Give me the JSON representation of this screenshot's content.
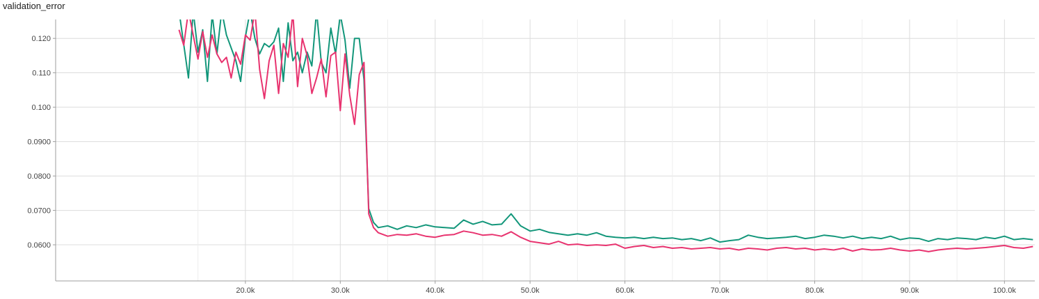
{
  "chart_data": {
    "type": "line",
    "title": "validation_error",
    "xlabel": "",
    "ylabel": "",
    "xlim": [
      0,
      103200
    ],
    "ylim": [
      0.0495,
      0.1255
    ],
    "grid": true,
    "x_ticks": [
      20000,
      30000,
      40000,
      50000,
      60000,
      70000,
      80000,
      90000,
      100000
    ],
    "x_tick_labels": [
      "20.0k",
      "30.0k",
      "40.0k",
      "50.0k",
      "60.0k",
      "70.0k",
      "80.0k",
      "90.0k",
      "100.0k"
    ],
    "y_ticks": [
      0.06,
      0.07,
      0.08,
      0.09,
      0.1,
      0.11,
      0.12
    ],
    "y_tick_labels": [
      "0.0600",
      "0.0700",
      "0.0800",
      "0.0900",
      "0.100",
      "0.110",
      "0.120"
    ],
    "series": [
      {
        "color": "#12967a",
        "points": [
          [
            13000,
            0.128
          ],
          [
            14000,
            0.1085
          ],
          [
            14500,
            0.128
          ],
          [
            15000,
            0.116
          ],
          [
            15500,
            0.1225
          ],
          [
            16000,
            0.1075
          ],
          [
            16500,
            0.127
          ],
          [
            17000,
            0.1155
          ],
          [
            17500,
            0.128
          ],
          [
            18000,
            0.121
          ],
          [
            19000,
            0.1135
          ],
          [
            19500,
            0.1075
          ],
          [
            20000,
            0.1205
          ],
          [
            20500,
            0.128
          ],
          [
            21000,
            0.12
          ],
          [
            21500,
            0.1155
          ],
          [
            22000,
            0.1185
          ],
          [
            22500,
            0.1175
          ],
          [
            23000,
            0.119
          ],
          [
            23500,
            0.123
          ],
          [
            24000,
            0.1075
          ],
          [
            24500,
            0.1245
          ],
          [
            25000,
            0.1135
          ],
          [
            25500,
            0.116
          ],
          [
            26000,
            0.11
          ],
          [
            26500,
            0.116
          ],
          [
            27000,
            0.112
          ],
          [
            27500,
            0.128
          ],
          [
            28000,
            0.113
          ],
          [
            28500,
            0.11
          ],
          [
            29000,
            0.123
          ],
          [
            29500,
            0.1155
          ],
          [
            30000,
            0.127
          ],
          [
            30500,
            0.1195
          ],
          [
            31000,
            0.1055
          ],
          [
            31500,
            0.12
          ],
          [
            32000,
            0.12
          ],
          [
            32500,
            0.108
          ],
          [
            33000,
            0.0705
          ],
          [
            33500,
            0.0665
          ],
          [
            34000,
            0.065
          ],
          [
            35000,
            0.0655
          ],
          [
            36000,
            0.0645
          ],
          [
            37000,
            0.0655
          ],
          [
            38000,
            0.065
          ],
          [
            39000,
            0.0658
          ],
          [
            40000,
            0.0652
          ],
          [
            41000,
            0.065
          ],
          [
            42000,
            0.0648
          ],
          [
            43000,
            0.0672
          ],
          [
            44000,
            0.066
          ],
          [
            45000,
            0.0668
          ],
          [
            46000,
            0.0658
          ],
          [
            47000,
            0.066
          ],
          [
            48000,
            0.069
          ],
          [
            49000,
            0.0655
          ],
          [
            50000,
            0.064
          ],
          [
            51000,
            0.0645
          ],
          [
            52000,
            0.0636
          ],
          [
            53000,
            0.0632
          ],
          [
            54000,
            0.0628
          ],
          [
            55000,
            0.0632
          ],
          [
            56000,
            0.0628
          ],
          [
            57000,
            0.0635
          ],
          [
            58000,
            0.0625
          ],
          [
            59000,
            0.0622
          ],
          [
            60000,
            0.062
          ],
          [
            61000,
            0.0622
          ],
          [
            62000,
            0.0618
          ],
          [
            63000,
            0.0622
          ],
          [
            64000,
            0.0618
          ],
          [
            65000,
            0.062
          ],
          [
            66000,
            0.0615
          ],
          [
            67000,
            0.0618
          ],
          [
            68000,
            0.0612
          ],
          [
            69000,
            0.062
          ],
          [
            70000,
            0.0608
          ],
          [
            71000,
            0.0612
          ],
          [
            72000,
            0.0615
          ],
          [
            73000,
            0.0628
          ],
          [
            74000,
            0.0622
          ],
          [
            75000,
            0.0618
          ],
          [
            76000,
            0.062
          ],
          [
            77000,
            0.0622
          ],
          [
            78000,
            0.0625
          ],
          [
            79000,
            0.0618
          ],
          [
            80000,
            0.0622
          ],
          [
            81000,
            0.0628
          ],
          [
            82000,
            0.0625
          ],
          [
            83000,
            0.062
          ],
          [
            84000,
            0.0625
          ],
          [
            85000,
            0.0618
          ],
          [
            86000,
            0.0622
          ],
          [
            87000,
            0.0618
          ],
          [
            88000,
            0.0625
          ],
          [
            89000,
            0.0615
          ],
          [
            90000,
            0.062
          ],
          [
            91000,
            0.0618
          ],
          [
            92000,
            0.061
          ],
          [
            93000,
            0.0618
          ],
          [
            94000,
            0.0615
          ],
          [
            95000,
            0.062
          ],
          [
            96000,
            0.0618
          ],
          [
            97000,
            0.0615
          ],
          [
            98000,
            0.0622
          ],
          [
            99000,
            0.0618
          ],
          [
            100000,
            0.0625
          ],
          [
            101000,
            0.0615
          ],
          [
            102000,
            0.0618
          ],
          [
            103000,
            0.0615
          ]
        ]
      },
      {
        "color": "#e8336f",
        "points": [
          [
            13000,
            0.1225
          ],
          [
            13500,
            0.118
          ],
          [
            14000,
            0.128
          ],
          [
            14500,
            0.121
          ],
          [
            15000,
            0.114
          ],
          [
            15500,
            0.122
          ],
          [
            16000,
            0.1145
          ],
          [
            16500,
            0.121
          ],
          [
            17000,
            0.1155
          ],
          [
            17500,
            0.113
          ],
          [
            18000,
            0.1145
          ],
          [
            18500,
            0.1085
          ],
          [
            19000,
            0.116
          ],
          [
            19500,
            0.1125
          ],
          [
            20000,
            0.121
          ],
          [
            20500,
            0.1195
          ],
          [
            21000,
            0.128
          ],
          [
            21500,
            0.111
          ],
          [
            22000,
            0.1025
          ],
          [
            22500,
            0.1135
          ],
          [
            23000,
            0.118
          ],
          [
            23500,
            0.104
          ],
          [
            24000,
            0.1185
          ],
          [
            24500,
            0.1145
          ],
          [
            25000,
            0.1275
          ],
          [
            25500,
            0.106
          ],
          [
            26000,
            0.12
          ],
          [
            26500,
            0.115
          ],
          [
            27000,
            0.104
          ],
          [
            27500,
            0.1085
          ],
          [
            28000,
            0.114
          ],
          [
            28500,
            0.103
          ],
          [
            29000,
            0.115
          ],
          [
            29500,
            0.116
          ],
          [
            30000,
            0.099
          ],
          [
            30500,
            0.1155
          ],
          [
            31000,
            0.1035
          ],
          [
            31500,
            0.095
          ],
          [
            32000,
            0.1095
          ],
          [
            32500,
            0.113
          ],
          [
            33000,
            0.069
          ],
          [
            33500,
            0.065
          ],
          [
            34000,
            0.0635
          ],
          [
            35000,
            0.0625
          ],
          [
            36000,
            0.063
          ],
          [
            37000,
            0.0628
          ],
          [
            38000,
            0.0632
          ],
          [
            39000,
            0.0625
          ],
          [
            40000,
            0.0622
          ],
          [
            41000,
            0.0628
          ],
          [
            42000,
            0.063
          ],
          [
            43000,
            0.064
          ],
          [
            44000,
            0.0635
          ],
          [
            45000,
            0.0628
          ],
          [
            46000,
            0.063
          ],
          [
            47000,
            0.0625
          ],
          [
            48000,
            0.0638
          ],
          [
            49000,
            0.0622
          ],
          [
            50000,
            0.061
          ],
          [
            51000,
            0.0606
          ],
          [
            52000,
            0.0602
          ],
          [
            53000,
            0.061
          ],
          [
            54000,
            0.06
          ],
          [
            55000,
            0.0602
          ],
          [
            56000,
            0.0598
          ],
          [
            57000,
            0.06
          ],
          [
            58000,
            0.0598
          ],
          [
            59000,
            0.0602
          ],
          [
            60000,
            0.059
          ],
          [
            61000,
            0.0595
          ],
          [
            62000,
            0.0598
          ],
          [
            63000,
            0.0592
          ],
          [
            64000,
            0.0595
          ],
          [
            65000,
            0.059
          ],
          [
            66000,
            0.0592
          ],
          [
            67000,
            0.0588
          ],
          [
            68000,
            0.059
          ],
          [
            69000,
            0.0592
          ],
          [
            70000,
            0.0588
          ],
          [
            71000,
            0.059
          ],
          [
            72000,
            0.0585
          ],
          [
            73000,
            0.059
          ],
          [
            74000,
            0.0588
          ],
          [
            75000,
            0.0585
          ],
          [
            76000,
            0.059
          ],
          [
            77000,
            0.0592
          ],
          [
            78000,
            0.0588
          ],
          [
            79000,
            0.059
          ],
          [
            80000,
            0.0585
          ],
          [
            81000,
            0.0588
          ],
          [
            82000,
            0.0585
          ],
          [
            83000,
            0.059
          ],
          [
            84000,
            0.0582
          ],
          [
            85000,
            0.0588
          ],
          [
            86000,
            0.0585
          ],
          [
            87000,
            0.0586
          ],
          [
            88000,
            0.059
          ],
          [
            89000,
            0.0585
          ],
          [
            90000,
            0.0582
          ],
          [
            91000,
            0.0585
          ],
          [
            92000,
            0.058
          ],
          [
            93000,
            0.0585
          ],
          [
            94000,
            0.0588
          ],
          [
            95000,
            0.059
          ],
          [
            96000,
            0.0588
          ],
          [
            97000,
            0.059
          ],
          [
            98000,
            0.0592
          ],
          [
            99000,
            0.0595
          ],
          [
            100000,
            0.0598
          ],
          [
            101000,
            0.0592
          ],
          [
            102000,
            0.059
          ],
          [
            103000,
            0.0595
          ]
        ]
      }
    ]
  }
}
